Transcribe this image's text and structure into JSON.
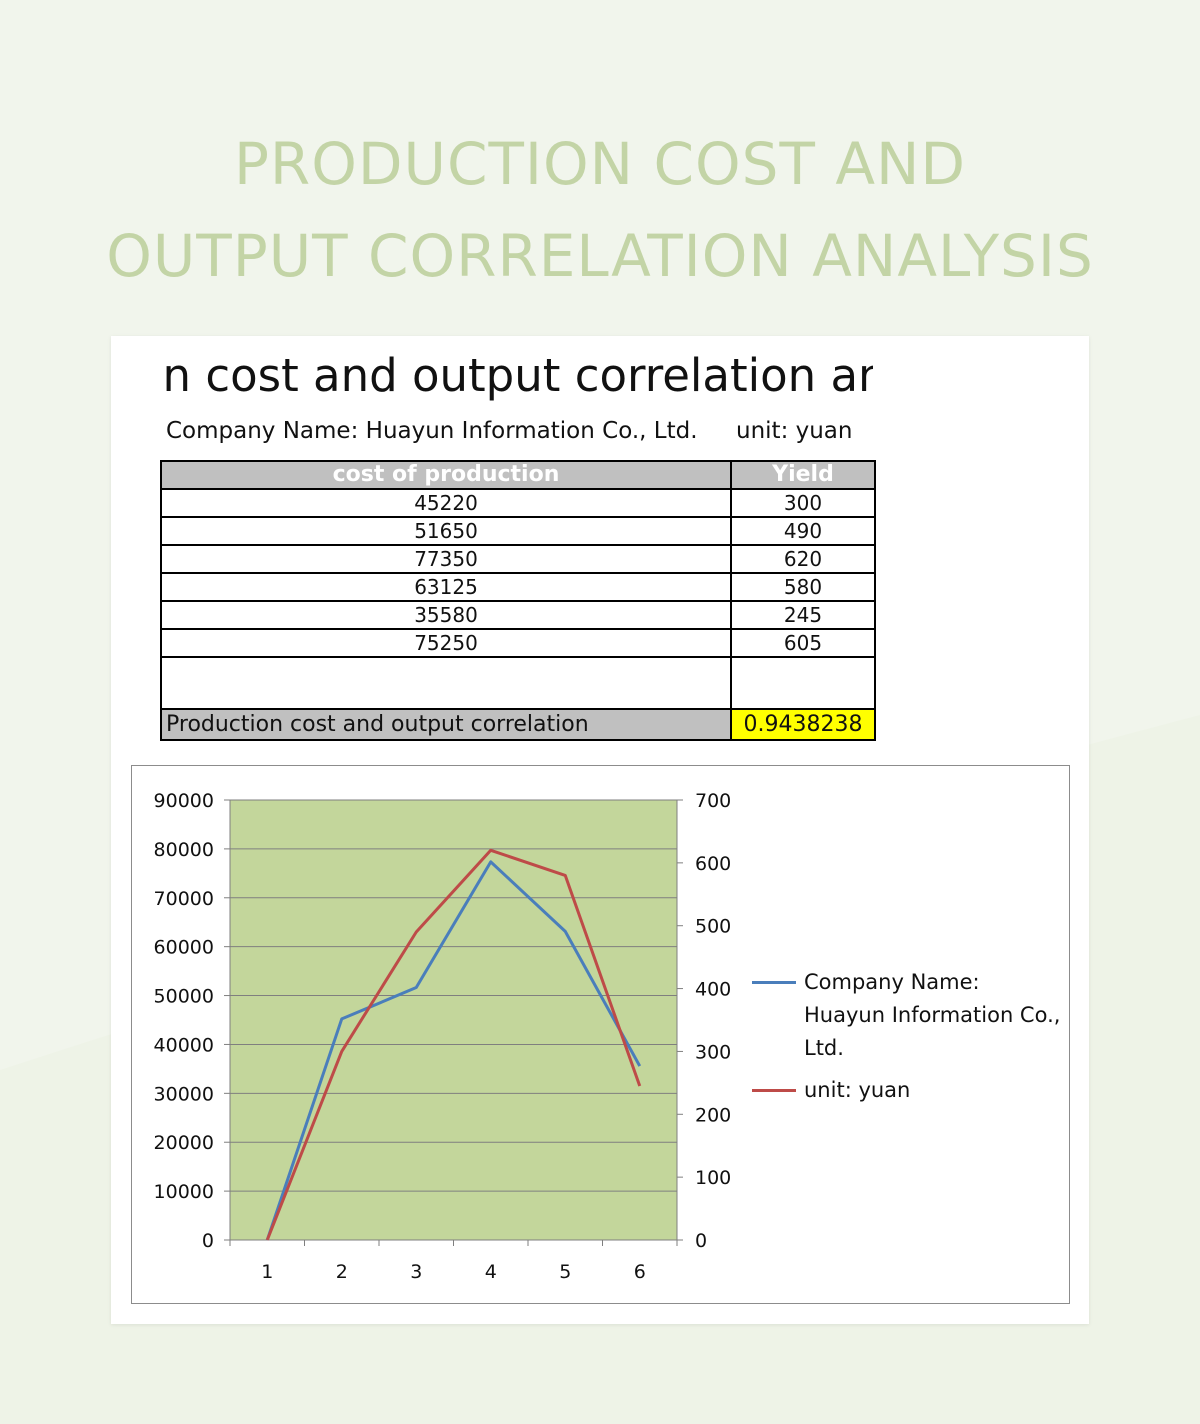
{
  "hero": {
    "line1": "PRODUCTION COST AND",
    "line2": "OUTPUT CORRELATION ANALYSIS"
  },
  "sheet": {
    "title": "on cost and output correlation anal",
    "company": "Company Name: Huayun Information Co., Ltd.",
    "unit": "unit: yuan",
    "table": {
      "headers": [
        "cost of production",
        "Yield"
      ],
      "rows": [
        [
          "45220",
          "300"
        ],
        [
          "51650",
          "490"
        ],
        [
          "77350",
          "620"
        ],
        [
          "63125",
          "580"
        ],
        [
          "35580",
          "245"
        ],
        [
          "75250",
          "605"
        ]
      ],
      "correlation_label": "Production cost and output correlation",
      "correlation_value": "0.9438238"
    }
  },
  "colors": {
    "plot_bg": "#c3d69b",
    "series_blue": "#4a7ebb",
    "series_red": "#be4b48",
    "correlation_highlight": "#ffff00"
  },
  "chart_data": {
    "type": "line",
    "x": [
      1,
      2,
      3,
      4,
      5,
      6
    ],
    "x_ticks": [
      "1",
      "2",
      "3",
      "4",
      "5",
      "6"
    ],
    "series": [
      {
        "name": "Company Name: Huayun Information Co., Ltd.",
        "axis": "left",
        "color": "#4a7ebb",
        "values": [
          0,
          45220,
          51650,
          77350,
          63125,
          35580
        ]
      },
      {
        "name": "unit: yuan",
        "axis": "right",
        "color": "#be4b48",
        "values": [
          0,
          300,
          490,
          620,
          580,
          245
        ]
      }
    ],
    "y_left": {
      "ylim": [
        0,
        90000
      ],
      "ticks": [
        "0",
        "10000",
        "20000",
        "30000",
        "40000",
        "50000",
        "60000",
        "70000",
        "80000",
        "90000"
      ]
    },
    "y_right": {
      "ylim": [
        0,
        700
      ],
      "ticks": [
        "0",
        "100",
        "200",
        "300",
        "400",
        "500",
        "600",
        "700"
      ]
    },
    "grid": true,
    "legend_position": "right"
  }
}
